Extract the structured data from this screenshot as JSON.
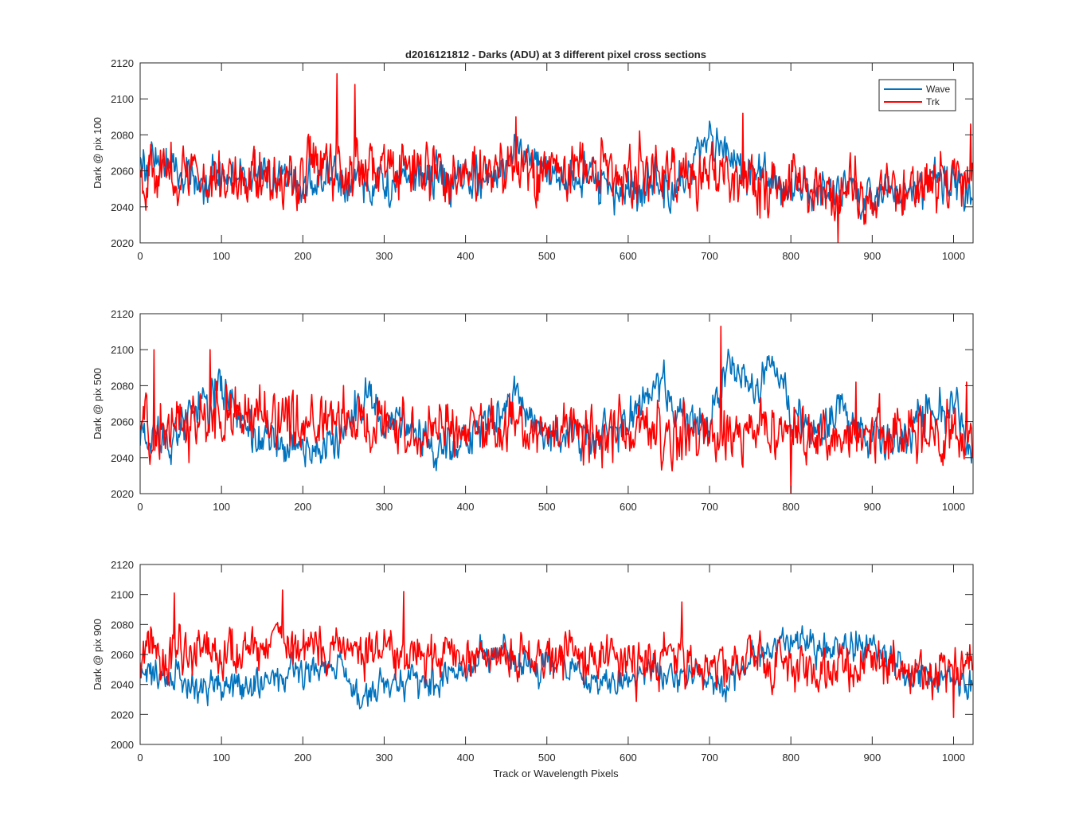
{
  "figure": {
    "title": "d2016121812 - Darks (ADU) at 3 different pixel cross sections",
    "xlabel": "Track or Wavelength Pixels"
  },
  "colors": {
    "Wave": "#0072BD",
    "Trk": "#FF0000",
    "axes": "#262626"
  },
  "chart_data": [
    {
      "type": "line",
      "ylabel": "Dark @ pix 100",
      "xlim": [
        0,
        1024
      ],
      "ylim": [
        2020,
        2120
      ],
      "xticks": [
        0,
        100,
        200,
        300,
        400,
        500,
        600,
        700,
        800,
        900,
        1000
      ],
      "yticks": [
        2020,
        2040,
        2060,
        2080,
        2100,
        2120
      ],
      "legend": {
        "position": "top-right",
        "entries": [
          "Wave",
          "Trk"
        ]
      },
      "n_points": 1024,
      "series": [
        {
          "name": "Wave",
          "noise_amplitude": 8,
          "baseline": [
            [
              0,
              2064
            ],
            [
              20,
              2066
            ],
            [
              60,
              2058
            ],
            [
              100,
              2055
            ],
            [
              150,
              2058
            ],
            [
              200,
              2054
            ],
            [
              260,
              2055
            ],
            [
              300,
              2052
            ],
            [
              350,
              2056
            ],
            [
              400,
              2054
            ],
            [
              440,
              2056
            ],
            [
              460,
              2076
            ],
            [
              480,
              2070
            ],
            [
              500,
              2060
            ],
            [
              540,
              2056
            ],
            [
              580,
              2050
            ],
            [
              620,
              2051
            ],
            [
              660,
              2050
            ],
            [
              680,
              2062
            ],
            [
              700,
              2074
            ],
            [
              730,
              2066
            ],
            [
              760,
              2058
            ],
            [
              800,
              2050
            ],
            [
              850,
              2048
            ],
            [
              900,
              2046
            ],
            [
              950,
              2052
            ],
            [
              1000,
              2058
            ],
            [
              1024,
              2048
            ]
          ]
        },
        {
          "name": "Trk",
          "noise_amplitude": 11,
          "baseline": [
            [
              0,
              2060
            ],
            [
              50,
              2058
            ],
            [
              100,
              2056
            ],
            [
              200,
              2058
            ],
            [
              240,
              2062
            ],
            [
              270,
              2066
            ],
            [
              300,
              2060
            ],
            [
              400,
              2058
            ],
            [
              480,
              2060
            ],
            [
              520,
              2062
            ],
            [
              600,
              2058
            ],
            [
              700,
              2058
            ],
            [
              800,
              2052
            ],
            [
              900,
              2050
            ],
            [
              1000,
              2054
            ],
            [
              1024,
              2060
            ]
          ],
          "spikes": [
            [
              242,
              2114
            ],
            [
              264,
              2108
            ],
            [
              462,
              2090
            ],
            [
              741,
              2092
            ],
            [
              1021,
              2086
            ],
            [
              858,
              2020
            ]
          ]
        }
      ]
    },
    {
      "type": "line",
      "ylabel": "Dark @ pix 500",
      "xlim": [
        0,
        1024
      ],
      "ylim": [
        2020,
        2120
      ],
      "xticks": [
        0,
        100,
        200,
        300,
        400,
        500,
        600,
        700,
        800,
        900,
        1000
      ],
      "yticks": [
        2020,
        2040,
        2060,
        2080,
        2100,
        2120
      ],
      "n_points": 1024,
      "series": [
        {
          "name": "Wave",
          "noise_amplitude": 8,
          "baseline": [
            [
              0,
              2056
            ],
            [
              40,
              2052
            ],
            [
              80,
              2072
            ],
            [
              100,
              2080
            ],
            [
              120,
              2060
            ],
            [
              150,
              2048
            ],
            [
              200,
              2044
            ],
            [
              250,
              2052
            ],
            [
              280,
              2074
            ],
            [
              300,
              2058
            ],
            [
              350,
              2050
            ],
            [
              380,
              2044
            ],
            [
              420,
              2056
            ],
            [
              460,
              2074
            ],
            [
              480,
              2062
            ],
            [
              500,
              2052
            ],
            [
              560,
              2052
            ],
            [
              600,
              2060
            ],
            [
              620,
              2074
            ],
            [
              640,
              2078
            ],
            [
              670,
              2056
            ],
            [
              700,
              2058
            ],
            [
              720,
              2090
            ],
            [
              760,
              2080
            ],
            [
              780,
              2090
            ],
            [
              800,
              2064
            ],
            [
              840,
              2056
            ],
            [
              860,
              2072
            ],
            [
              880,
              2052
            ],
            [
              900,
              2050
            ],
            [
              930,
              2046
            ],
            [
              970,
              2070
            ],
            [
              1000,
              2064
            ],
            [
              1024,
              2046
            ]
          ]
        },
        {
          "name": "Trk",
          "noise_amplitude": 11,
          "baseline": [
            [
              0,
              2058
            ],
            [
              100,
              2062
            ],
            [
              200,
              2058
            ],
            [
              300,
              2060
            ],
            [
              400,
              2056
            ],
            [
              500,
              2056
            ],
            [
              600,
              2054
            ],
            [
              700,
              2054
            ],
            [
              800,
              2052
            ],
            [
              900,
              2050
            ],
            [
              1000,
              2054
            ],
            [
              1024,
              2054
            ]
          ],
          "spikes": [
            [
              17,
              2100
            ],
            [
              86,
              2100
            ],
            [
              714,
              2113
            ],
            [
              800,
              2020
            ],
            [
              880,
              2082
            ],
            [
              1016,
              2082
            ]
          ]
        }
      ]
    },
    {
      "type": "line",
      "ylabel": "Dark @ pix 900",
      "xlim": [
        0,
        1024
      ],
      "ylim": [
        2000,
        2120
      ],
      "xticks": [
        0,
        100,
        200,
        300,
        400,
        500,
        600,
        700,
        800,
        900,
        1000
      ],
      "yticks": [
        2000,
        2020,
        2040,
        2060,
        2080,
        2100,
        2120
      ],
      "n_points": 1024,
      "series": [
        {
          "name": "Wave",
          "noise_amplitude": 7,
          "baseline": [
            [
              0,
              2050
            ],
            [
              40,
              2042
            ],
            [
              100,
              2040
            ],
            [
              150,
              2040
            ],
            [
              200,
              2052
            ],
            [
              250,
              2050
            ],
            [
              270,
              2030
            ],
            [
              300,
              2042
            ],
            [
              350,
              2040
            ],
            [
              400,
              2050
            ],
            [
              440,
              2066
            ],
            [
              480,
              2050
            ],
            [
              520,
              2050
            ],
            [
              560,
              2040
            ],
            [
              600,
              2046
            ],
            [
              640,
              2046
            ],
            [
              680,
              2048
            ],
            [
              720,
              2040
            ],
            [
              760,
              2060
            ],
            [
              790,
              2068
            ],
            [
              830,
              2066
            ],
            [
              860,
              2064
            ],
            [
              900,
              2068
            ],
            [
              940,
              2050
            ],
            [
              980,
              2046
            ],
            [
              1024,
              2040
            ]
          ]
        },
        {
          "name": "Trk",
          "noise_amplitude": 11,
          "baseline": [
            [
              0,
              2060
            ],
            [
              100,
              2062
            ],
            [
              175,
              2066
            ],
            [
              250,
              2064
            ],
            [
              300,
              2062
            ],
            [
              400,
              2058
            ],
            [
              500,
              2058
            ],
            [
              600,
              2056
            ],
            [
              700,
              2054
            ],
            [
              800,
              2052
            ],
            [
              900,
              2052
            ],
            [
              1000,
              2052
            ],
            [
              1024,
              2054
            ]
          ],
          "spikes": [
            [
              42,
              2101
            ],
            [
              175,
              2103
            ],
            [
              324,
              2102
            ],
            [
              666,
              2095
            ],
            [
              1000,
              2018
            ]
          ]
        }
      ]
    }
  ]
}
